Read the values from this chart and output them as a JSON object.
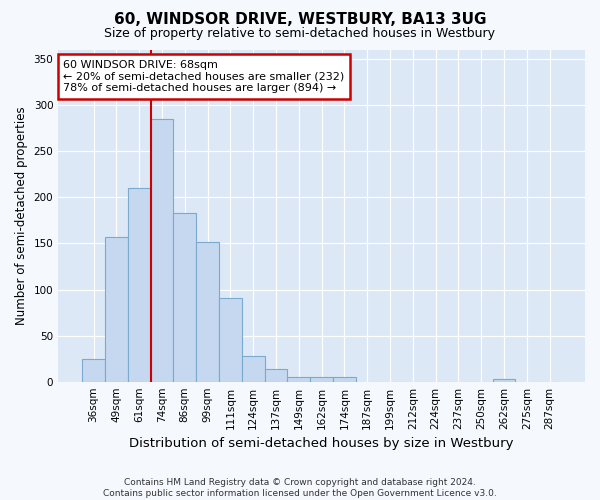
{
  "title": "60, WINDSOR DRIVE, WESTBURY, BA13 3UG",
  "subtitle": "Size of property relative to semi-detached houses in Westbury",
  "xlabel": "Distribution of semi-detached houses by size in Westbury",
  "ylabel": "Number of semi-detached properties",
  "footer_line1": "Contains HM Land Registry data © Crown copyright and database right 2024.",
  "footer_line2": "Contains public sector information licensed under the Open Government Licence v3.0.",
  "annotation_title": "60 WINDSOR DRIVE: 68sqm",
  "annotation_line1": "← 20% of semi-detached houses are smaller (232)",
  "annotation_line2": "78% of semi-detached houses are larger (894) →",
  "bar_color": "#c5d8f0",
  "bar_edge_color": "#7aaad0",
  "line_color": "#cc0000",
  "plot_bg_color": "#dce8f5",
  "fig_bg_color": "#f5f8fd",
  "annotation_box_color": "#ffffff",
  "annotation_box_edge": "#cc0000",
  "categories": [
    "36sqm",
    "49sqm",
    "61sqm",
    "74sqm",
    "86sqm",
    "99sqm",
    "111sqm",
    "124sqm",
    "137sqm",
    "149sqm",
    "162sqm",
    "174sqm",
    "187sqm",
    "199sqm",
    "212sqm",
    "224sqm",
    "237sqm",
    "250sqm",
    "262sqm",
    "275sqm",
    "287sqm"
  ],
  "values": [
    25,
    157,
    210,
    285,
    183,
    152,
    91,
    28,
    14,
    5,
    5,
    5,
    0,
    0,
    0,
    0,
    0,
    0,
    3,
    0,
    0
  ],
  "ylim": [
    0,
    360
  ],
  "yticks": [
    0,
    50,
    100,
    150,
    200,
    250,
    300,
    350
  ],
  "red_line_x": 2.5,
  "figsize": [
    6.0,
    5.0
  ],
  "dpi": 100
}
